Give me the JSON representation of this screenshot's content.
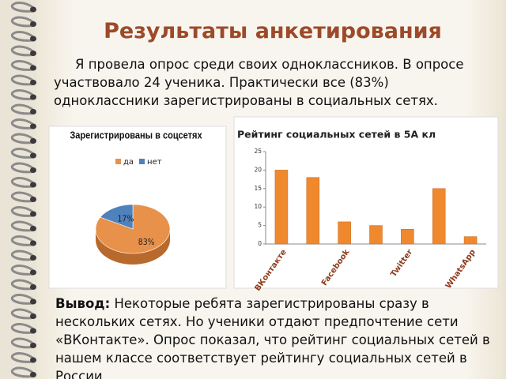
{
  "title": "Результаты анкетирования",
  "intro": "Я провела опрос среди своих одноклассников. В опросе участвовало 24 ученика. Практически все (83%) одноклассники зарегистрированы в социальных сетях.",
  "conclusion_label": "Вывод:",
  "conclusion": "Некоторые  ребята зарегистрированы сразу в нескольких сетях. Но ученики отдают предпочтение сети «ВКонтакте». Опрос показал, что рейтинг социальных сетей в нашем классе соответствует рейтингу социальных сетей в России",
  "chart_data": [
    {
      "type": "pie",
      "title": "Зарегистрированы в соцсетях",
      "categories": [
        "да",
        "нет"
      ],
      "values": [
        83,
        17
      ],
      "value_labels": [
        "83%",
        "17%"
      ],
      "colors": [
        "#e8914a",
        "#4f81bd"
      ],
      "legend": "top"
    },
    {
      "type": "bar",
      "title": "Рейтинг социальных сетей в 5А кл",
      "categories": [
        "ВКонтакте",
        null,
        "Facebook",
        null,
        "Twitter",
        null,
        "WhatsApp"
      ],
      "values": [
        20,
        18,
        6,
        5,
        4,
        15,
        2
      ],
      "color": "#f0892e",
      "ylim": [
        0,
        25
      ],
      "yticks": [
        0,
        5,
        10,
        15,
        20,
        25
      ],
      "grid": false
    }
  ]
}
